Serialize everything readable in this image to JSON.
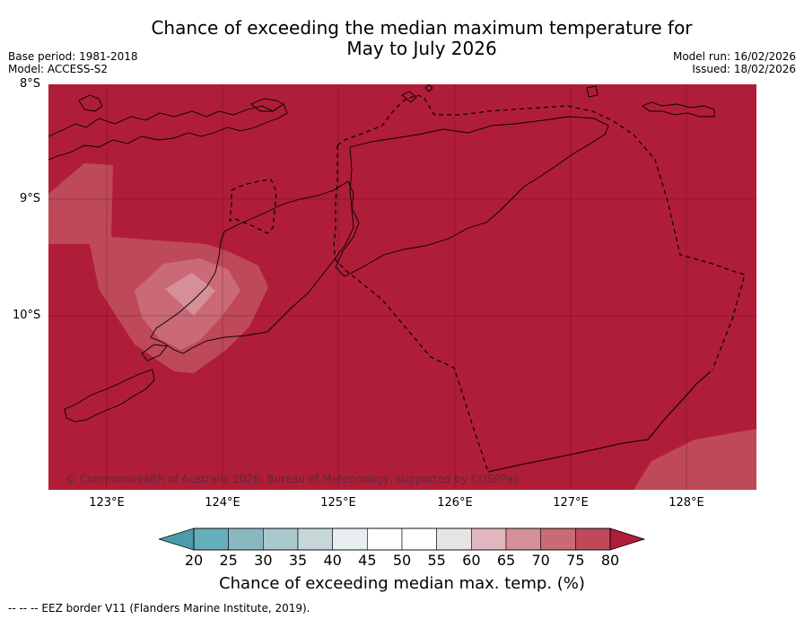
{
  "title_line1": "Chance of exceeding the median maximum temperature for",
  "title_line2": "May to July 2026",
  "base_period": "Base period: 1981-2018",
  "model": "Model: ACCESS-S2",
  "model_run": "Model run: 16/02/2026",
  "issued": "Issued: 18/02/2026",
  "lat_labels": [
    "8°S",
    "9°S",
    "10°S"
  ],
  "lon_labels": [
    "123°E",
    "124°E",
    "125°E",
    "126°E",
    "127°E",
    "128°E"
  ],
  "copyright": "© Commonwealth of Australia 2026, Bureau of Meteorology, supported by COSPPac",
  "colorbar": {
    "ticks": [
      "20",
      "25",
      "30",
      "35",
      "40",
      "45",
      "50",
      "55",
      "60",
      "65",
      "70",
      "75",
      "80"
    ],
    "label": "Chance of exceeding median max. temp. (%)",
    "colors": [
      "#67aebb",
      "#89b8c1",
      "#a8c8cc",
      "#c6d7da",
      "#e7eff0",
      "#ffffff",
      "#ffffff",
      "#e5e5e5",
      "#e2b6bf",
      "#d58f99",
      "#c96a76",
      "#be4959"
    ],
    "under_color": "#4e9bab",
    "over_color": "#b01d39"
  },
  "map": {
    "background_color": "#b01d39",
    "lat_range": [
      "8°S",
      "11.5°S"
    ],
    "lon_range": [
      "122.5°E",
      "128.6°E"
    ]
  },
  "footer": "--  --  -- EEZ border V11 (Flanders Marine Institute, 2019)."
}
